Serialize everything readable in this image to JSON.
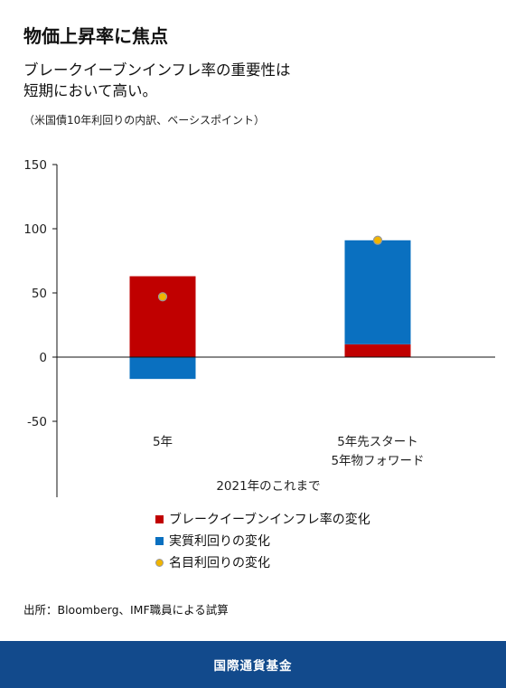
{
  "header": {
    "title": "物価上昇率に焦点",
    "subtitle_line1": "ブレークイーブンインフレ率の重要性は",
    "subtitle_line2": "短期において高い。",
    "note": "（米国債10年利回りの内訳、ベーシスポイント）"
  },
  "chart_data": {
    "type": "bar",
    "stacked": true,
    "xlabel": "2021年のこれまで",
    "ylabel": "",
    "ylim": [
      -50,
      150
    ],
    "yticks": [
      150,
      100,
      50,
      0,
      -50
    ],
    "categories": [
      [
        "5年"
      ],
      [
        "5年先スタート",
        "5年物フォワード"
      ]
    ],
    "series": [
      {
        "name": "ブレークイーブンインフレ率の変化",
        "kind": "bar",
        "color": "#c00000",
        "values": [
          63,
          10
        ]
      },
      {
        "name": "実質利回りの変化",
        "kind": "bar",
        "color": "#0a70c0",
        "values": [
          -17,
          81
        ]
      },
      {
        "name": "名目利回りの変化",
        "kind": "point",
        "color": "#f0b400",
        "values": [
          47,
          91
        ]
      }
    ],
    "grid": false
  },
  "legend": [
    {
      "label": "ブレークイーブンインフレ率の変化",
      "color": "#c00000",
      "shape": "square"
    },
    {
      "label": "実質利回りの変化",
      "color": "#0a70c0",
      "shape": "square"
    },
    {
      "label": "名目利回りの変化",
      "color": "#f0b400",
      "shape": "dot"
    }
  ],
  "source": "出所：Bloomberg、IMF職員による試算",
  "footer": {
    "org": "国際通貨基金",
    "color": "#124a8c"
  }
}
